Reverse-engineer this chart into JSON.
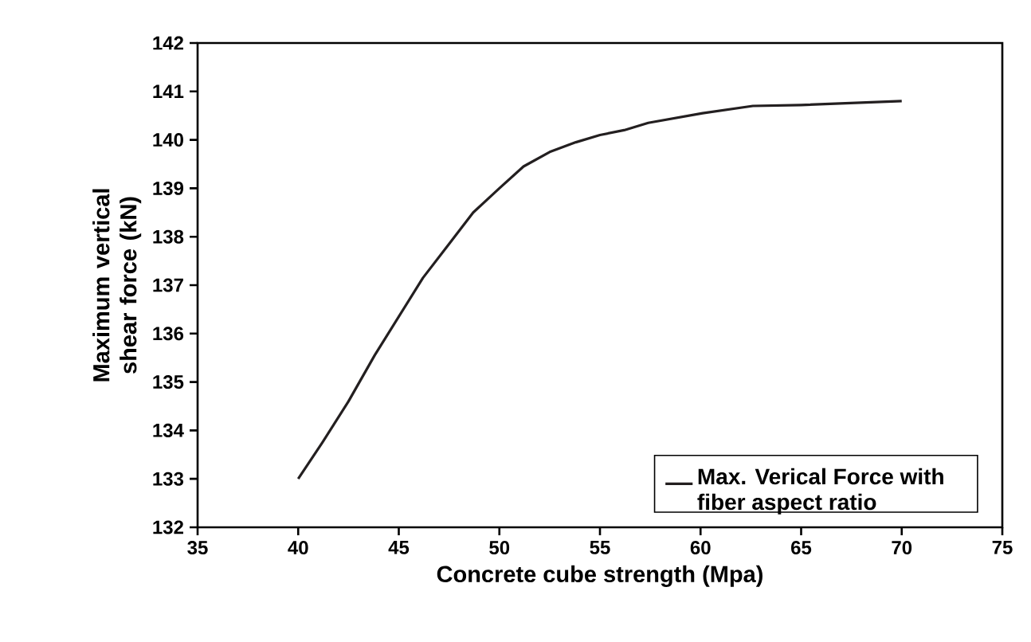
{
  "chart_data": {
    "type": "line",
    "xlabel": "Concrete cube strength (Mpa)",
    "ylabel": "Maximum vertical shear force (kN)",
    "xlim": [
      35,
      75
    ],
    "xticks": [
      35,
      40,
      45,
      50,
      55,
      60,
      65,
      70,
      75
    ],
    "ylim": [
      132,
      142
    ],
    "yticks": [
      132,
      133,
      134,
      135,
      136,
      137,
      138,
      139,
      140,
      141,
      142
    ],
    "legend": "bottom right",
    "grid": false,
    "marker": "none",
    "line_style": "solid",
    "series": [
      {
        "name": "Max. Verical Force with fiber aspect ratio",
        "color": "#231f20",
        "x": [
          40,
          41.2,
          42.5,
          43.8,
          45,
          46.2,
          47.5,
          48.7,
          50,
          51.2,
          52.5,
          53.8,
          55,
          56.2,
          57.4,
          60.1,
          62.6,
          65,
          70
        ],
        "values": [
          133.0,
          133.75,
          134.6,
          135.55,
          136.35,
          137.15,
          137.85,
          138.5,
          139.0,
          139.45,
          139.75,
          139.95,
          140.1,
          140.2,
          140.35,
          140.55,
          140.7,
          140.72,
          140.8
        ]
      }
    ]
  }
}
